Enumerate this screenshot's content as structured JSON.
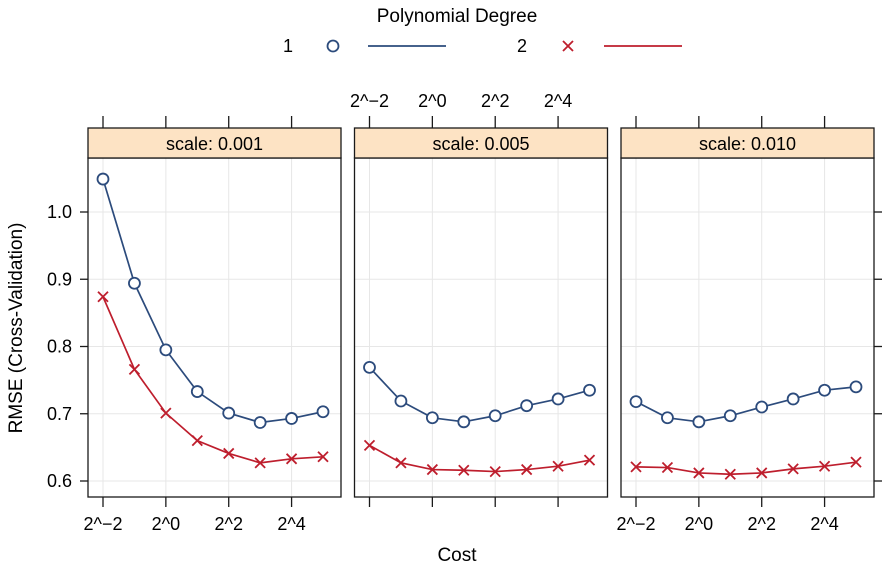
{
  "chart_data": {
    "type": "line",
    "title": "Polynomial Degree",
    "xlabel": "Cost",
    "ylabel": "RMSE (Cross-Validation)",
    "x_scale": "log2",
    "grid": true,
    "legend": {
      "title": "Polynomial Degree",
      "position": "top",
      "entries": [
        {
          "label": "1",
          "marker": "circle",
          "color": "#2C4B7C"
        },
        {
          "label": "2",
          "marker": "x",
          "color": "#BE1E2D"
        }
      ]
    },
    "x_values": [
      0.25,
      0.5,
      1,
      2,
      4,
      8,
      16,
      32
    ],
    "x_tick_values": [
      0.25,
      1,
      4,
      16
    ],
    "x_tick_labels": [
      "2^−2",
      "2^0",
      "2^2",
      "2^4"
    ],
    "y_ticks": [
      1.0,
      0.9,
      0.8,
      0.7,
      0.6
    ],
    "y_tick_labels": [
      "1.0",
      "0.9",
      "0.8",
      "0.7",
      "0.6"
    ],
    "ylim": [
      0.575,
      1.08
    ],
    "panels": [
      {
        "strip_label": "scale: 0.001",
        "series": [
          {
            "name": "1",
            "values": [
              1.049,
              0.894,
              0.795,
              0.733,
              0.701,
              0.687,
              0.693,
              0.703
            ]
          },
          {
            "name": "2",
            "values": [
              0.874,
              0.766,
              0.701,
              0.66,
              0.641,
              0.627,
              0.633,
              0.636
            ]
          }
        ]
      },
      {
        "strip_label": "scale: 0.005",
        "series": [
          {
            "name": "1",
            "values": [
              0.769,
              0.719,
              0.694,
              0.688,
              0.697,
              0.712,
              0.722,
              0.735
            ]
          },
          {
            "name": "2",
            "values": [
              0.653,
              0.627,
              0.617,
              0.616,
              0.614,
              0.617,
              0.622,
              0.631
            ]
          }
        ]
      },
      {
        "strip_label": "scale: 0.010",
        "series": [
          {
            "name": "1",
            "values": [
              0.718,
              0.694,
              0.688,
              0.697,
              0.71,
              0.722,
              0.735,
              0.74
            ]
          },
          {
            "name": "2",
            "values": [
              0.621,
              0.62,
              0.612,
              0.61,
              0.612,
              0.618,
              0.622,
              0.628
            ]
          }
        ]
      }
    ],
    "style": {
      "strip_bg": "#FDE3C4",
      "grid_color": "#E7E7E7",
      "border_color": "#1A1A1A",
      "panel_bg": "#FFFFFF"
    }
  }
}
